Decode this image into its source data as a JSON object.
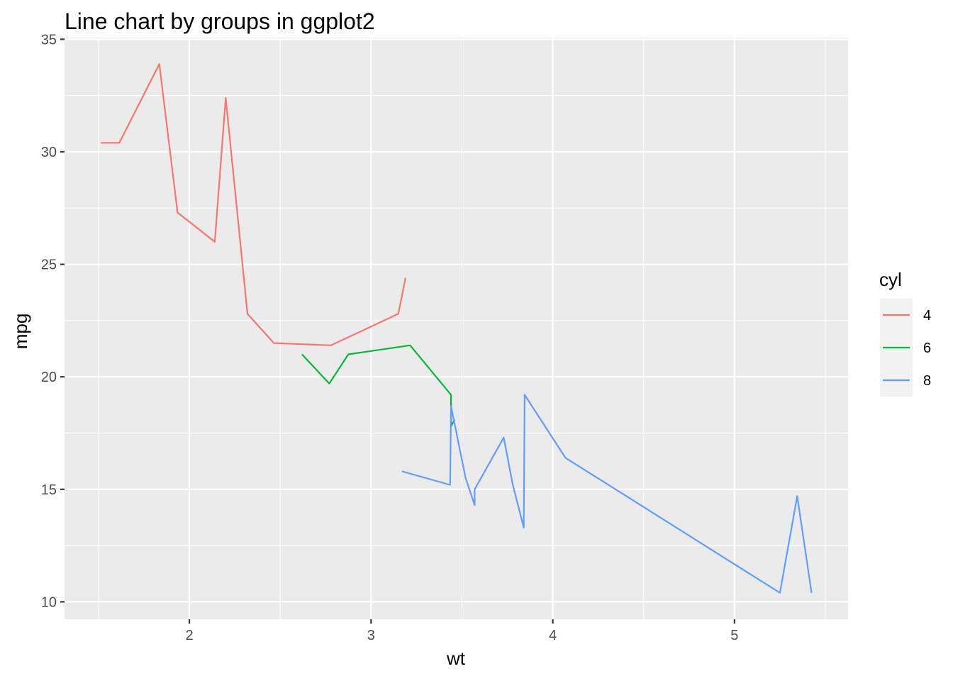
{
  "chart_data": {
    "type": "line",
    "title": "Line chart by groups in ggplot2",
    "xlabel": "wt",
    "ylabel": "mpg",
    "xlim": [
      1.3132,
      5.6248
    ],
    "ylim": [
      9.225,
      35.075
    ],
    "x_ticks": [
      2,
      3,
      4,
      5
    ],
    "y_ticks": [
      10,
      15,
      20,
      25,
      30,
      35
    ],
    "x_minor": [
      1.5,
      2.5,
      3.5,
      4.5,
      5.5
    ],
    "y_minor": [
      12.5,
      17.5,
      22.5,
      27.5,
      32.5
    ],
    "grid": true,
    "legend": {
      "title": "cyl",
      "position": "right"
    },
    "series": [
      {
        "name": "4",
        "color": "#F8766D",
        "points": [
          [
            1.513,
            30.4
          ],
          [
            1.615,
            30.4
          ],
          [
            1.835,
            33.9
          ],
          [
            1.935,
            27.3
          ],
          [
            2.14,
            26.0
          ],
          [
            2.2,
            32.4
          ],
          [
            2.32,
            22.8
          ],
          [
            2.465,
            21.5
          ],
          [
            2.78,
            21.4
          ],
          [
            3.15,
            22.8
          ],
          [
            3.19,
            24.4
          ]
        ]
      },
      {
        "name": "6",
        "color": "#00BA38",
        "points": [
          [
            2.62,
            21.0
          ],
          [
            2.77,
            19.7
          ],
          [
            2.875,
            21.0
          ],
          [
            3.215,
            21.4
          ],
          [
            3.44,
            19.2
          ],
          [
            3.44,
            17.8
          ],
          [
            3.46,
            18.1
          ]
        ]
      },
      {
        "name": "8",
        "color": "#619CFF",
        "points": [
          [
            3.17,
            15.8
          ],
          [
            3.435,
            15.2
          ],
          [
            3.44,
            18.7
          ],
          [
            3.52,
            15.5
          ],
          [
            3.57,
            14.3
          ],
          [
            3.57,
            15.0
          ],
          [
            3.73,
            17.3
          ],
          [
            3.78,
            15.2
          ],
          [
            3.84,
            13.3
          ],
          [
            3.845,
            19.2
          ],
          [
            4.07,
            16.4
          ],
          [
            5.25,
            10.4
          ],
          [
            5.345,
            14.7
          ],
          [
            5.424,
            10.4
          ]
        ]
      }
    ]
  }
}
